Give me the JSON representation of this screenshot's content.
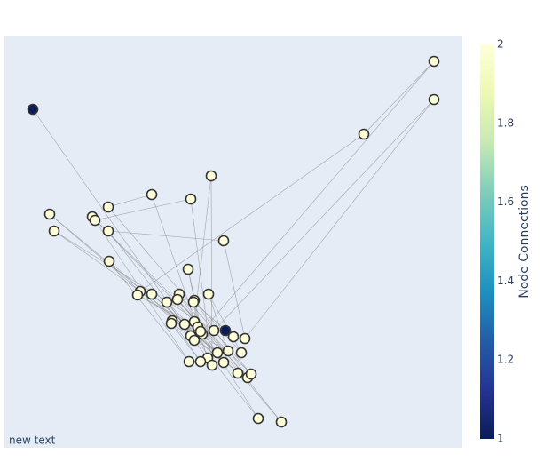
{
  "chart_data": {
    "type": "network",
    "annotation": "new text",
    "colorbar_title": "Node Connections",
    "colorscale": [
      "#081d58",
      "#253494",
      "#225ea8",
      "#1d91c0",
      "#41b6c4",
      "#7fcdbb",
      "#c7e9b4",
      "#edf8b1",
      "#ffffd9"
    ],
    "clim": [
      1,
      2
    ],
    "cticks": [
      1,
      1.2,
      1.4,
      1.6,
      1.8,
      2
    ],
    "xlim": [
      0,
      516
    ],
    "ylim": [
      0,
      464
    ],
    "x": [
      32,
      249,
      484,
      484,
      405,
      233,
      166,
      210,
      117,
      51,
      99,
      102,
      117,
      56,
      247,
      118,
      207,
      153,
      150,
      166,
      183,
      197,
      195,
      214,
      213,
      230,
      189,
      188,
      203,
      214,
      218,
      236,
      210,
      214,
      223,
      221,
      258,
      271,
      240,
      252,
      267,
      229,
      208,
      221,
      234,
      247,
      263,
      274,
      278,
      286,
      312
    ],
    "y": [
      381,
      132,
      435,
      392,
      353,
      306,
      285,
      280,
      271,
      263,
      260,
      256,
      244,
      244,
      233,
      210,
      201,
      176,
      172,
      173,
      164,
      173,
      167,
      166,
      164,
      173,
      143,
      140,
      139,
      142,
      136,
      132,
      126,
      121,
      128,
      131,
      125,
      123,
      107,
      109,
      107,
      101,
      97,
      97,
      93,
      96,
      84,
      79,
      83,
      33,
      29
    ],
    "connections": [
      1,
      1,
      2,
      2,
      2,
      2,
      2,
      2,
      2,
      2,
      2,
      2,
      2,
      2,
      2,
      2,
      2,
      2,
      2,
      2,
      2,
      2,
      2,
      2,
      2,
      2,
      2,
      2,
      2,
      2,
      2,
      2,
      2,
      2,
      2,
      2,
      2,
      2,
      2,
      2,
      2,
      2,
      2,
      2,
      2,
      2,
      2,
      2,
      2,
      2,
      2
    ],
    "edges": [
      [
        0,
        33
      ],
      [
        33,
        2
      ],
      [
        2,
        4
      ],
      [
        4,
        17
      ],
      [
        17,
        13
      ],
      [
        13,
        31
      ],
      [
        31,
        3
      ],
      [
        3,
        37
      ],
      [
        37,
        14
      ],
      [
        14,
        12
      ],
      [
        12,
        41
      ],
      [
        41,
        6
      ],
      [
        6,
        8
      ],
      [
        8,
        48
      ],
      [
        48,
        10
      ],
      [
        10,
        29
      ],
      [
        29,
        5
      ],
      [
        5,
        44
      ],
      [
        44,
        7
      ],
      [
        7,
        11
      ],
      [
        11,
        42
      ],
      [
        42,
        15
      ],
      [
        15,
        45
      ],
      [
        45,
        9
      ],
      [
        9,
        38
      ],
      [
        38,
        19
      ],
      [
        19,
        46
      ],
      [
        46,
        20
      ],
      [
        20,
        49
      ],
      [
        49,
        21
      ],
      [
        21,
        50
      ],
      [
        50,
        22
      ],
      [
        22,
        47
      ],
      [
        47,
        23
      ],
      [
        23,
        40
      ],
      [
        40,
        25
      ],
      [
        25,
        39
      ],
      [
        39,
        26
      ],
      [
        26,
        43
      ],
      [
        43,
        27
      ],
      [
        27,
        32
      ],
      [
        32,
        28
      ],
      [
        28,
        34
      ],
      [
        34,
        16
      ],
      [
        16,
        35
      ],
      [
        35,
        18
      ],
      [
        18,
        30
      ],
      [
        30,
        24
      ],
      [
        24,
        36
      ],
      [
        36,
        1
      ]
    ]
  }
}
